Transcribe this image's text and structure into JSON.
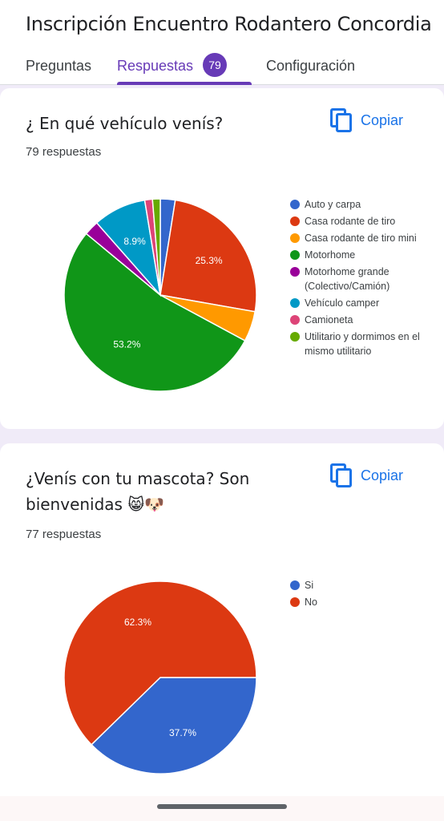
{
  "form_title": "Inscripción Encuentro Rodantero Concordia",
  "tabs": [
    {
      "label": "Preguntas"
    },
    {
      "label": "Respuestas",
      "badge": "79"
    },
    {
      "label": "Configuración"
    }
  ],
  "copy_label": "Copiar",
  "icons": {
    "copy": "copy-icon"
  },
  "accent_color": "#673ab7",
  "questions": [
    {
      "title": "¿ En qué vehículo venís?",
      "count": "79 respuestas",
      "chart_data": {
        "type": "pie",
        "categories": [
          "Auto y carpa",
          "Casa rodante de tiro",
          "Casa rodante de tiro mini",
          "Motorhome",
          "Motorhome grande (Colectivo/Camión)",
          "Vehículo camper",
          "Camioneta",
          "Utilitario y dormimos en el mismo utilitario"
        ],
        "values": [
          2.5,
          25.3,
          5.1,
          53.2,
          2.5,
          8.9,
          1.3,
          1.3
        ],
        "colors": [
          "#3366cc",
          "#dc3912",
          "#ff9900",
          "#109618",
          "#990099",
          "#0099c6",
          "#dd4477",
          "#66aa00"
        ],
        "data_labels": [
          "",
          "25.3%",
          "",
          "53.2%",
          "",
          "8.9%",
          "",
          ""
        ],
        "legend_placement": "right"
      }
    },
    {
      "title": "¿Venís con tu mascota? Son bienvenidas 😸🐶",
      "count": "77 respuestas",
      "chart_data": {
        "type": "pie",
        "categories": [
          "Si",
          "No"
        ],
        "values": [
          37.7,
          62.3
        ],
        "colors": [
          "#3366cc",
          "#dc3912"
        ],
        "data_labels": [
          "37.7%",
          "62.3%"
        ],
        "legend_placement": "right"
      }
    }
  ]
}
